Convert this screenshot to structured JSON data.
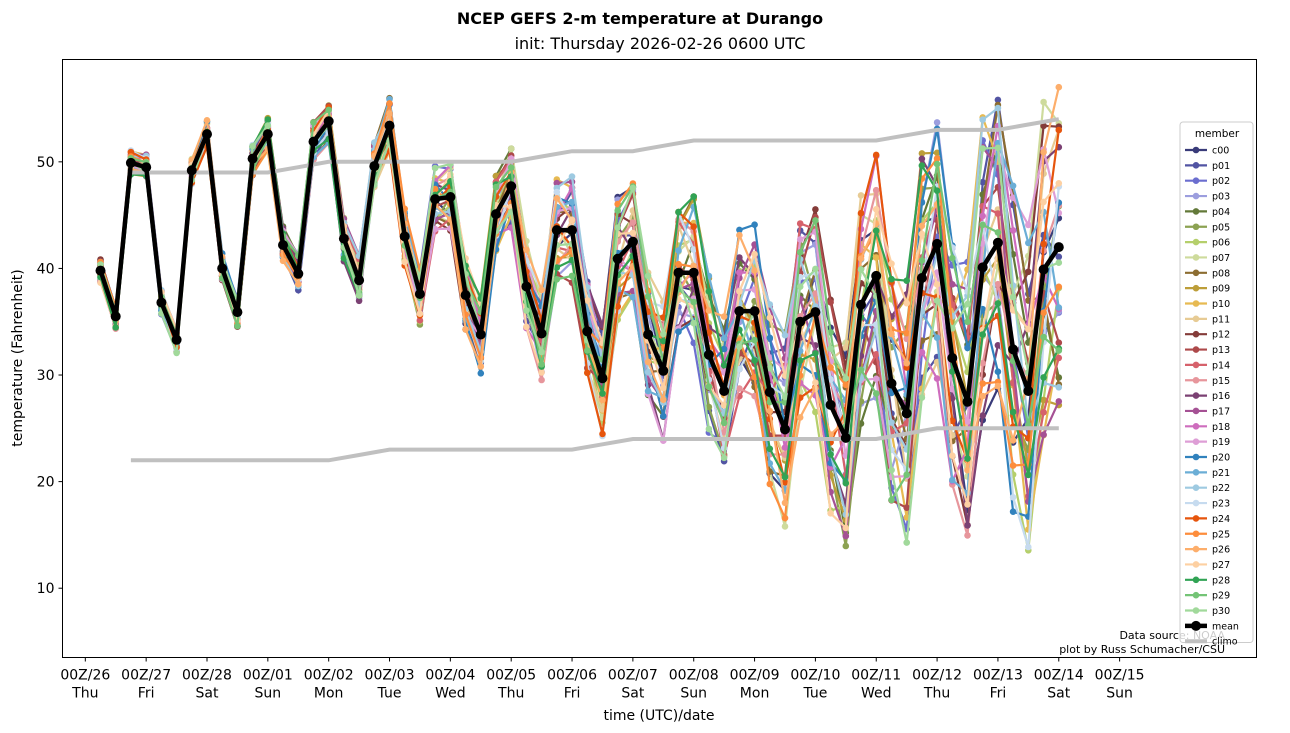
{
  "chart_data": {
    "type": "line",
    "title": "NCEP GEFS 2-m temperature at Durango",
    "subtitle": "init: Thursday 2026-02-26 0600 UTC",
    "xlabel": "time (UTC)/date",
    "ylabel": "temperature (Fahrenheit)",
    "ylim": [
      3.5,
      59.6
    ],
    "xlim_hours_from_00Z26": [
      -9,
      462
    ],
    "yticks": [
      10,
      20,
      30,
      40,
      50
    ],
    "xticks": [
      {
        "hours": 0,
        "line1": "00Z/26",
        "line2": "Thu"
      },
      {
        "hours": 24,
        "line1": "00Z/27",
        "line2": "Fri"
      },
      {
        "hours": 48,
        "line1": "00Z/28",
        "line2": "Sat"
      },
      {
        "hours": 72,
        "line1": "00Z/01",
        "line2": "Sun"
      },
      {
        "hours": 96,
        "line1": "00Z/02",
        "line2": "Mon"
      },
      {
        "hours": 120,
        "line1": "00Z/03",
        "line2": "Tue"
      },
      {
        "hours": 144,
        "line1": "00Z/04",
        "line2": "Wed"
      },
      {
        "hours": 168,
        "line1": "00Z/05",
        "line2": "Thu"
      },
      {
        "hours": 192,
        "line1": "00Z/06",
        "line2": "Fri"
      },
      {
        "hours": 216,
        "line1": "00Z/07",
        "line2": "Sat"
      },
      {
        "hours": 240,
        "line1": "00Z/08",
        "line2": "Sun"
      },
      {
        "hours": 264,
        "line1": "00Z/09",
        "line2": "Mon"
      },
      {
        "hours": 288,
        "line1": "00Z/10",
        "line2": "Tue"
      },
      {
        "hours": 312,
        "line1": "00Z/11",
        "line2": "Wed"
      },
      {
        "hours": 336,
        "line1": "00Z/12",
        "line2": "Thu"
      },
      {
        "hours": 360,
        "line1": "00Z/13",
        "line2": "Fri"
      },
      {
        "hours": 384,
        "line1": "00Z/14",
        "line2": "Sat"
      },
      {
        "hours": 408,
        "line1": "00Z/15",
        "line2": "Sun"
      }
    ],
    "x_start_hours": 6,
    "x_step_hours": 6,
    "grid": false,
    "legend": {
      "title": "member",
      "placement": "right"
    },
    "mean": {
      "name": "mean",
      "color": "#000000",
      "values": [
        39.8,
        35.5,
        49.9,
        49.5,
        36.8,
        33.3,
        49.2,
        52.6,
        40.0,
        35.9,
        50.3,
        52.6,
        42.2,
        39.5,
        51.9,
        53.8,
        42.8,
        38.9,
        49.6,
        53.4,
        43.0,
        37.6,
        46.5,
        46.7,
        37.5,
        33.8,
        45.1,
        47.7,
        38.3,
        33.9,
        43.6,
        43.6,
        34.1,
        29.7,
        40.9,
        42.5,
        33.8,
        30.4,
        39.6,
        39.6,
        31.9,
        28.5,
        36.0,
        36.0,
        28.4,
        24.9,
        35.0,
        35.9,
        27.2,
        24.1,
        36.6,
        39.3,
        29.2,
        26.4,
        39.1,
        42.3,
        31.6,
        27.5,
        40.1,
        42.4,
        32.4,
        28.5,
        39.9,
        42.0
      ]
    },
    "climo": {
      "name": "climo",
      "color": "#c0c0c0",
      "high": {
        "hours": [
          18,
          24,
          48,
          60,
          72,
          84,
          96,
          108,
          120,
          144,
          168,
          180,
          192,
          204,
          216,
          228,
          240,
          264,
          288,
          312,
          324,
          336,
          360,
          372,
          384
        ],
        "values": [
          49,
          49,
          49,
          49,
          49,
          49.5,
          50,
          50,
          50,
          50,
          50,
          50.5,
          51,
          51,
          51,
          51.5,
          52,
          52,
          52,
          52,
          52.5,
          53,
          53,
          53.5,
          54
        ]
      },
      "low": {
        "hours": [
          18,
          24,
          48,
          72,
          96,
          108,
          120,
          144,
          168,
          192,
          204,
          216,
          240,
          264,
          288,
          312,
          324,
          336,
          360,
          384
        ],
        "values": [
          22,
          22,
          22,
          22,
          22,
          22.5,
          23,
          23,
          23,
          23,
          23.5,
          24,
          24,
          24,
          24,
          24,
          24.5,
          25,
          25,
          25
        ]
      }
    },
    "members": [
      {
        "name": "c00",
        "color": "#393b79"
      },
      {
        "name": "p01",
        "color": "#5254a3"
      },
      {
        "name": "p02",
        "color": "#6b6ecf"
      },
      {
        "name": "p03",
        "color": "#9c9ede"
      },
      {
        "name": "p04",
        "color": "#637939"
      },
      {
        "name": "p05",
        "color": "#8ca252"
      },
      {
        "name": "p06",
        "color": "#b5cf6b"
      },
      {
        "name": "p07",
        "color": "#cedb9c"
      },
      {
        "name": "p08",
        "color": "#8c6d31"
      },
      {
        "name": "p09",
        "color": "#bd9e39"
      },
      {
        "name": "p10",
        "color": "#e7ba52"
      },
      {
        "name": "p11",
        "color": "#e7cb94"
      },
      {
        "name": "p12",
        "color": "#843c39"
      },
      {
        "name": "p13",
        "color": "#ad494a"
      },
      {
        "name": "p14",
        "color": "#d6616b"
      },
      {
        "name": "p15",
        "color": "#e7969c"
      },
      {
        "name": "p16",
        "color": "#7b4173"
      },
      {
        "name": "p17",
        "color": "#a55194"
      },
      {
        "name": "p18",
        "color": "#ce6dbd"
      },
      {
        "name": "p19",
        "color": "#de9ed6"
      },
      {
        "name": "p20",
        "color": "#3182bd"
      },
      {
        "name": "p21",
        "color": "#6baed6"
      },
      {
        "name": "p22",
        "color": "#9ecae1"
      },
      {
        "name": "p23",
        "color": "#c6dbef"
      },
      {
        "name": "p24",
        "color": "#e6550d"
      },
      {
        "name": "p25",
        "color": "#fd8d3c"
      },
      {
        "name": "p26",
        "color": "#fdae6b"
      },
      {
        "name": "p27",
        "color": "#fdd0a2"
      },
      {
        "name": "p28",
        "color": "#31a354"
      },
      {
        "name": "p29",
        "color": "#74c476"
      },
      {
        "name": "p30",
        "color": "#a1d99b"
      }
    ],
    "member_spread_note": "member values = mean + per-member offset (approximate, spread grows with lead time)",
    "member_offsets_phase": [
      0.3,
      1.7,
      2.9,
      4.1,
      0.9,
      5.3,
      2.2,
      3.6,
      4.8,
      1.1,
      6.0,
      2.6,
      0.5,
      3.9,
      5.1,
      1.4,
      4.4,
      2.0,
      5.7,
      0.7,
      3.2,
      4.7,
      1.9,
      6.2,
      2.4,
      0.2,
      3.4,
      5.5,
      1.2,
      4.0,
      2.8
    ],
    "annotations": [
      "Data source: NOAA",
      "plot by Russ Schumacher/CSU"
    ]
  }
}
